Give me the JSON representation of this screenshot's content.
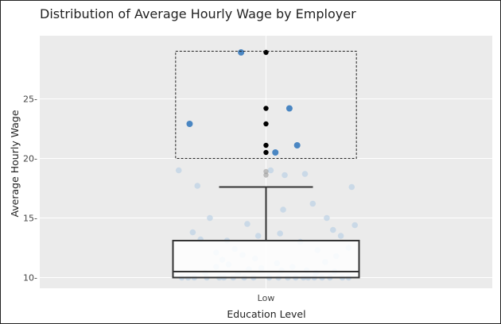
{
  "chart_data": {
    "type": "box",
    "title": "Distribution of Average Hourly Wage by Employer",
    "xlabel": "Education Level",
    "ylabel": "Average Hourly Wage",
    "categories": [
      "Low"
    ],
    "yticks": [
      10,
      15,
      20,
      25
    ],
    "ytick_labels": [
      "10-",
      "15-",
      "20-",
      "25-"
    ],
    "ylim": [
      9.1,
      30.3
    ],
    "grid": true,
    "box": {
      "category": "Low",
      "whisker_low": 10.0,
      "q1": 10.0,
      "median": 10.5,
      "q3": 13.1,
      "whisker_high": 17.6
    },
    "selection_box": {
      "x0": -0.58,
      "x1": 0.58,
      "y0": 20.0,
      "y1": 29.0
    },
    "outliers": [
      {
        "y": 28.9
      },
      {
        "y": 24.2
      },
      {
        "y": 22.9
      },
      {
        "y": 21.1
      },
      {
        "y": 20.5
      },
      {
        "y": 18.6
      },
      {
        "y": 18.9
      }
    ],
    "selected_points": [
      {
        "x": -0.16,
        "y": 28.9
      },
      {
        "x": 0.15,
        "y": 24.2
      },
      {
        "x": -0.49,
        "y": 22.9
      },
      {
        "x": 0.2,
        "y": 21.1
      },
      {
        "x": 0.06,
        "y": 20.5
      }
    ],
    "unselected_points": [
      {
        "x": -0.56,
        "y": 19.0
      },
      {
        "x": -0.44,
        "y": 17.7
      },
      {
        "x": -0.36,
        "y": 15.0
      },
      {
        "x": -0.47,
        "y": 13.8
      },
      {
        "x": -0.42,
        "y": 13.2
      },
      {
        "x": -0.32,
        "y": 12.1
      },
      {
        "x": -0.25,
        "y": 13.1
      },
      {
        "x": -0.2,
        "y": 12.4
      },
      {
        "x": -0.12,
        "y": 14.5
      },
      {
        "x": -0.05,
        "y": 13.5
      },
      {
        "x": 0.11,
        "y": 15.7
      },
      {
        "x": 0.12,
        "y": 18.6
      },
      {
        "x": 0.25,
        "y": 18.7
      },
      {
        "x": 0.3,
        "y": 16.2
      },
      {
        "x": 0.39,
        "y": 15.0
      },
      {
        "x": 0.43,
        "y": 14.0
      },
      {
        "x": 0.48,
        "y": 13.5
      },
      {
        "x": 0.55,
        "y": 17.6
      },
      {
        "x": 0.57,
        "y": 14.4
      },
      {
        "x": 0.53,
        "y": 12.5
      },
      {
        "x": 0.38,
        "y": 11.3
      },
      {
        "x": 0.45,
        "y": 11.8
      },
      {
        "x": 0.33,
        "y": 12.3
      },
      {
        "x": 0.22,
        "y": 13.0
      },
      {
        "x": 0.09,
        "y": 13.7
      },
      {
        "x": 0.07,
        "y": 11.2
      },
      {
        "x": -0.03,
        "y": 10.8
      },
      {
        "x": -0.07,
        "y": 11.6
      },
      {
        "x": -0.15,
        "y": 11.9
      },
      {
        "x": -0.24,
        "y": 11.1
      },
      {
        "x": -0.32,
        "y": 10.9
      },
      {
        "x": -0.39,
        "y": 10.4
      },
      {
        "x": -0.5,
        "y": 10.0
      },
      {
        "x": -0.54,
        "y": 10.0
      },
      {
        "x": -0.46,
        "y": 10.0
      },
      {
        "x": -0.38,
        "y": 10.0
      },
      {
        "x": -0.3,
        "y": 10.0
      },
      {
        "x": -0.27,
        "y": 10.0
      },
      {
        "x": -0.21,
        "y": 10.0
      },
      {
        "x": -0.14,
        "y": 10.0
      },
      {
        "x": -0.08,
        "y": 10.0
      },
      {
        "x": 0.02,
        "y": 10.0
      },
      {
        "x": 0.08,
        "y": 10.0
      },
      {
        "x": 0.14,
        "y": 10.0
      },
      {
        "x": 0.19,
        "y": 10.0
      },
      {
        "x": 0.24,
        "y": 10.0
      },
      {
        "x": 0.27,
        "y": 10.0
      },
      {
        "x": 0.31,
        "y": 10.0
      },
      {
        "x": 0.36,
        "y": 10.0
      },
      {
        "x": 0.41,
        "y": 10.0
      },
      {
        "x": 0.49,
        "y": 10.0
      },
      {
        "x": 0.53,
        "y": 10.0
      },
      {
        "x": 0.1,
        "y": 10.6
      },
      {
        "x": 0.17,
        "y": 10.9
      },
      {
        "x": 0.26,
        "y": 10.6
      },
      {
        "x": -0.11,
        "y": 10.7
      },
      {
        "x": 0.32,
        "y": 10.4
      },
      {
        "x": -0.18,
        "y": 10.3
      },
      {
        "x": 0.44,
        "y": 10.5
      },
      {
        "x": 0.03,
        "y": 19.0
      },
      {
        "x": -0.28,
        "y": 11.5
      }
    ],
    "colors": {
      "panel": "#ebebeb",
      "grid": "#ffffff",
      "box_line": "#333333",
      "box_fill": "#ffffff",
      "selected_point": "#4a86c2",
      "unselected_point": "#bcd1e6",
      "outlier": "#000000",
      "selection_border": "#222222"
    }
  }
}
